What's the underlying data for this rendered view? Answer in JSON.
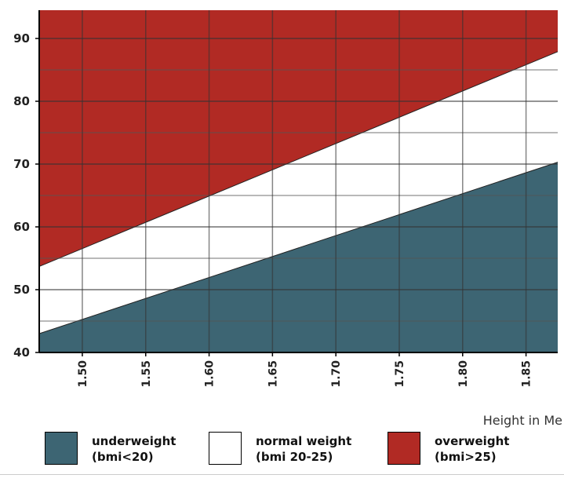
{
  "chart_data": {
    "type": "area",
    "title": "",
    "xlabel": "Height in Me",
    "ylabel": "",
    "xlim": [
      1.466,
      1.875
    ],
    "ylim": [
      40,
      94.5
    ],
    "x_ticks": [
      "1.50",
      "1.55",
      "1.60",
      "1.65",
      "1.70",
      "1.75",
      "1.80",
      "1.85"
    ],
    "y_ticks": [
      "40",
      "50",
      "60",
      "70",
      "80",
      "90"
    ],
    "grid": true,
    "legend_position": "bottom",
    "series": [
      {
        "name": "underweight",
        "label_detail": "(bmi<20)",
        "color": "#3d6573",
        "x": [
          1.466,
          1.875
        ],
        "y_lower": [
          40,
          40
        ],
        "y_upper": [
          43.0,
          70.3
        ]
      },
      {
        "name": "normal weight",
        "label_detail": "(bmi 20-25)",
        "color": "#ffffff",
        "x": [
          1.466,
          1.875
        ],
        "y_lower": [
          43.0,
          70.3
        ],
        "y_upper": [
          53.7,
          87.9
        ]
      },
      {
        "name": "overweight",
        "label_detail": "(bmi>25)",
        "color": "#b12a24",
        "x": [
          1.466,
          1.875
        ],
        "y_lower": [
          53.7,
          87.9
        ],
        "y_upper": [
          94.5,
          94.5
        ]
      }
    ]
  }
}
